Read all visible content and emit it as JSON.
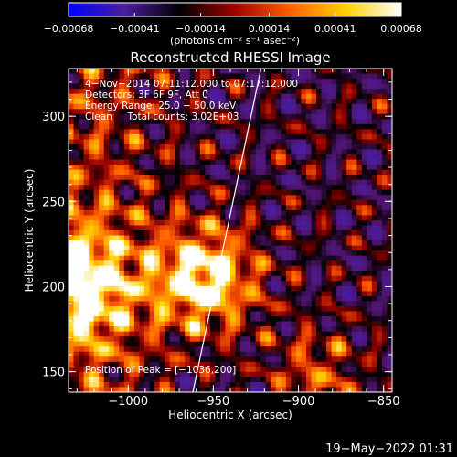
{
  "chart_data": {
    "type": "heatmap",
    "title": "Reconstructed RHESSI Image",
    "xlabel": "Heliocentric X (arcsec)",
    "ylabel": "Heliocentric Y (arcsec)",
    "xlim": [
      -1035,
      -845
    ],
    "ylim": [
      138,
      328
    ],
    "x_ticks": [
      -1000,
      -950,
      -900,
      -850
    ],
    "y_ticks": [
      150,
      200,
      250,
      300
    ],
    "x_tick_labels": [
      "−1000",
      "−950",
      "−900",
      "−850"
    ],
    "y_tick_labels": [
      "150",
      "200",
      "250",
      "300"
    ],
    "colorbar": {
      "min": -0.00068,
      "max": 0.00068,
      "ticks": [
        -0.00068,
        -0.00041,
        -0.00014,
        0.00014,
        0.00041,
        0.00068
      ],
      "tick_labels": [
        "−0.00068",
        "−0.00041",
        "−0.00014",
        "0.00014",
        "0.00041",
        "0.00068"
      ],
      "unit_label": "(photons cm⁻² s⁻¹ asec⁻²)",
      "colors": [
        "#0000ff",
        "#4b1ea0",
        "#000000",
        "#a00000",
        "#ff6000",
        "#ffd000",
        "#ffffff"
      ]
    },
    "peak": {
      "x": -1036,
      "y": 200
    },
    "limb_line": {
      "x": [
        -962,
        -922
      ],
      "y": [
        138,
        328
      ]
    }
  },
  "annotations": {
    "line1": "4−Nov−2014 07:11:12.000 to 07:17:12.000",
    "line2": "Detectors: 3F 6F 9F, Att 0",
    "line3": "Energy Range: 25.0 − 50.0 keV",
    "line4": "Clean     Total counts: 3.02E+03",
    "peak_label": "Position of Peak = [−1036,200]"
  },
  "footer": {
    "timestamp": "19−May−2022 01:31"
  }
}
